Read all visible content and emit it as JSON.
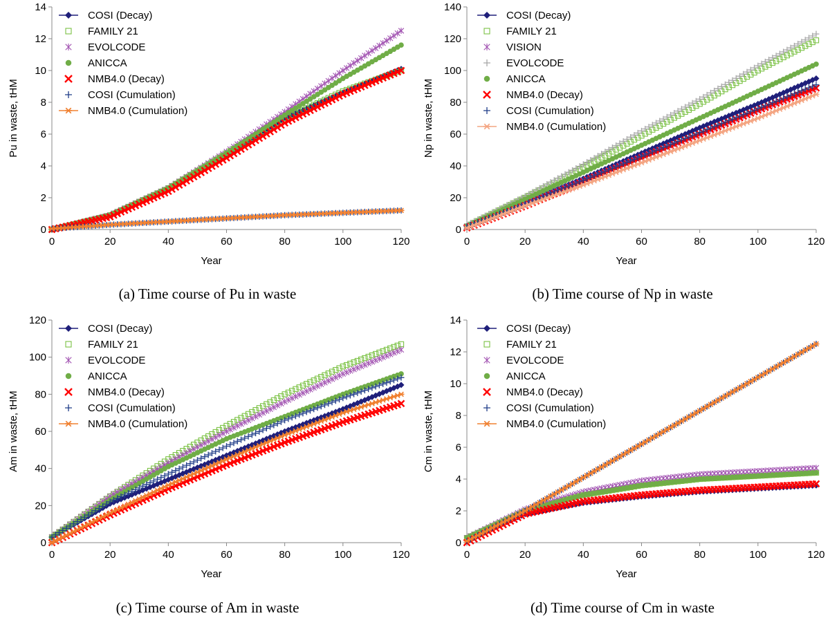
{
  "chart_data": [
    {
      "type": "line",
      "id": "pu",
      "caption": "(a) Time course of Pu in waste",
      "xlabel": "Year",
      "ylabel": "Pu in waste, tHM",
      "xlim": [
        0,
        120
      ],
      "ylim": [
        0,
        14
      ],
      "xticks": [
        "0",
        "20",
        "40",
        "60",
        "80",
        "100",
        "120"
      ],
      "yticks": [
        "0",
        "2",
        "4",
        "6",
        "8",
        "10",
        "12",
        "14"
      ],
      "series": [
        {
          "name": "COSI (Decay)",
          "color": "#1f1f7a",
          "marker": "diamond",
          "line": true,
          "x": [
            0,
            20,
            40,
            60,
            80,
            100,
            120
          ],
          "values": [
            0,
            0.9,
            2.6,
            4.7,
            7.0,
            8.6,
            10.1
          ]
        },
        {
          "name": "FAMILY 21",
          "color": "#7ac143",
          "marker": "square-open",
          "line": false,
          "x": [
            0,
            20,
            40,
            60,
            80,
            100,
            120
          ],
          "values": [
            0,
            0.9,
            2.6,
            4.8,
            7.0,
            8.7,
            10.0
          ]
        },
        {
          "name": "EVOLCODE",
          "color": "#a050b0",
          "marker": "star",
          "line": false,
          "x": [
            0,
            20,
            40,
            60,
            80,
            100,
            120
          ],
          "values": [
            0,
            0.9,
            2.6,
            4.9,
            7.4,
            10.0,
            12.5
          ]
        },
        {
          "name": "ANICCA",
          "color": "#70ad47",
          "marker": "circle",
          "line": false,
          "x": [
            0,
            20,
            40,
            60,
            80,
            100,
            120
          ],
          "values": [
            0,
            0.9,
            2.6,
            4.8,
            7.2,
            9.5,
            11.6
          ]
        },
        {
          "name": "NMB4.0 (Decay)",
          "color": "#ff0000",
          "marker": "x",
          "line": false,
          "x": [
            0,
            20,
            40,
            60,
            80,
            100,
            120
          ],
          "values": [
            0,
            0.8,
            2.4,
            4.5,
            6.7,
            8.5,
            10.0
          ]
        },
        {
          "name": "COSI (Cumulation)",
          "color": "#1f3c88",
          "marker": "plus",
          "line": false,
          "x": [
            0,
            20,
            40,
            60,
            80,
            100,
            120
          ],
          "values": [
            0.05,
            0.3,
            0.5,
            0.7,
            0.9,
            1.05,
            1.2
          ]
        },
        {
          "name": "NMB4.0 (Cumulation)",
          "color": "#f08030",
          "marker": "asterisk",
          "line": true,
          "x": [
            0,
            20,
            40,
            60,
            80,
            100,
            120
          ],
          "values": [
            0.05,
            0.3,
            0.5,
            0.7,
            0.9,
            1.05,
            1.2
          ]
        }
      ]
    },
    {
      "type": "line",
      "id": "np",
      "caption": "(b) Time course of Np in waste",
      "xlabel": "Year",
      "ylabel": "Np in waste, tHM",
      "xlim": [
        0,
        120
      ],
      "ylim": [
        0,
        140
      ],
      "xticks": [
        "0",
        "20",
        "40",
        "60",
        "80",
        "100",
        "120"
      ],
      "yticks": [
        "0",
        "20",
        "40",
        "60",
        "80",
        "100",
        "120",
        "140"
      ],
      "series": [
        {
          "name": "COSI (Decay)",
          "color": "#1f1f7a",
          "marker": "diamond",
          "line": true,
          "x": [
            0,
            20,
            40,
            60,
            80,
            100,
            120
          ],
          "values": [
            2,
            17,
            32,
            48,
            64,
            79,
            95
          ]
        },
        {
          "name": "FAMILY 21",
          "color": "#7ac143",
          "marker": "square-open",
          "line": false,
          "x": [
            0,
            20,
            40,
            60,
            80,
            100,
            120
          ],
          "values": [
            2,
            20,
            39,
            59,
            79,
            100,
            119
          ]
        },
        {
          "name": "VISION",
          "color": "#a050b0",
          "marker": "star",
          "line": false,
          "x": [
            0,
            20,
            40,
            60,
            80,
            100,
            120
          ],
          "values": [
            2,
            17,
            31,
            46,
            60,
            75,
            89
          ]
        },
        {
          "name": "EVOLCODE",
          "color": "#a6a6a6",
          "marker": "plus",
          "line": false,
          "x": [
            0,
            20,
            40,
            60,
            80,
            100,
            120
          ],
          "values": [
            3,
            21,
            41,
            62,
            82,
            103,
            123
          ]
        },
        {
          "name": "ANICCA",
          "color": "#70ad47",
          "marker": "circle",
          "line": false,
          "x": [
            0,
            20,
            40,
            60,
            80,
            100,
            120
          ],
          "values": [
            2,
            19,
            36,
            53,
            70,
            87,
            104
          ]
        },
        {
          "name": "NMB4.0 (Decay)",
          "color": "#ff0000",
          "marker": "x",
          "line": false,
          "x": [
            0,
            20,
            40,
            60,
            80,
            100,
            120
          ],
          "values": [
            1,
            15,
            30,
            45,
            60,
            75,
            89
          ]
        },
        {
          "name": "COSI (Cumulation)",
          "color": "#1f3c88",
          "marker": "plus",
          "line": false,
          "x": [
            0,
            20,
            40,
            60,
            80,
            100,
            120
          ],
          "values": [
            2,
            16,
            31,
            46,
            61,
            76,
            91
          ]
        },
        {
          "name": "NMB4.0 (Cumulation)",
          "color": "#f4a582",
          "marker": "asterisk",
          "line": true,
          "x": [
            0,
            20,
            40,
            60,
            80,
            100,
            120
          ],
          "values": [
            1,
            15,
            28,
            42,
            56,
            70,
            85
          ]
        }
      ]
    },
    {
      "type": "line",
      "id": "am",
      "caption": "(c) Time course of Am in waste",
      "xlabel": "Year",
      "ylabel": "Am in waste, tHM",
      "xlim": [
        0,
        120
      ],
      "ylim": [
        0,
        120
      ],
      "xticks": [
        "0",
        "20",
        "40",
        "60",
        "80",
        "100",
        "120"
      ],
      "yticks": [
        "0",
        "20",
        "40",
        "60",
        "80",
        "100",
        "120"
      ],
      "series": [
        {
          "name": "COSI (Decay)",
          "color": "#1f1f7a",
          "marker": "diamond",
          "line": true,
          "x": [
            0,
            20,
            40,
            60,
            80,
            100,
            120
          ],
          "values": [
            3,
            21,
            34,
            47,
            60,
            72,
            85
          ]
        },
        {
          "name": "FAMILY 21",
          "color": "#7ac143",
          "marker": "square-open",
          "line": false,
          "x": [
            0,
            20,
            40,
            60,
            80,
            100,
            120
          ],
          "values": [
            3,
            25,
            45,
            63,
            80,
            95,
            107
          ]
        },
        {
          "name": "EVOLCODE",
          "color": "#a050b0",
          "marker": "star",
          "line": false,
          "x": [
            0,
            20,
            40,
            60,
            80,
            100,
            120
          ],
          "values": [
            3,
            25,
            43,
            60,
            76,
            91,
            104
          ]
        },
        {
          "name": "ANICCA",
          "color": "#70ad47",
          "marker": "circle",
          "line": false,
          "x": [
            0,
            20,
            40,
            60,
            80,
            100,
            120
          ],
          "values": [
            3,
            23,
            41,
            56,
            68,
            80,
            91
          ]
        },
        {
          "name": "NMB4.0 (Decay)",
          "color": "#ff0000",
          "marker": "x",
          "line": false,
          "x": [
            0,
            20,
            40,
            60,
            80,
            100,
            120
          ],
          "values": [
            0,
            15,
            29,
            42,
            54,
            65,
            75
          ]
        },
        {
          "name": "COSI (Cumulation)",
          "color": "#1f3c88",
          "marker": "plus",
          "line": false,
          "x": [
            0,
            20,
            40,
            60,
            80,
            100,
            120
          ],
          "values": [
            3,
            22,
            37,
            52,
            66,
            78,
            89
          ]
        },
        {
          "name": "NMB4.0 (Cumulation)",
          "color": "#f08030",
          "marker": "asterisk",
          "line": true,
          "x": [
            0,
            20,
            40,
            60,
            80,
            100,
            120
          ],
          "values": [
            0,
            16,
            31,
            45,
            58,
            70,
            80
          ]
        }
      ]
    },
    {
      "type": "line",
      "id": "cm",
      "caption": "(d) Time course of Cm in waste",
      "xlabel": "Year",
      "ylabel": "Cm in waste, tHM",
      "xlim": [
        0,
        120
      ],
      "ylim": [
        0,
        14
      ],
      "xticks": [
        "0",
        "20",
        "40",
        "60",
        "80",
        "100",
        "120"
      ],
      "yticks": [
        "0",
        "2",
        "4",
        "6",
        "8",
        "10",
        "12",
        "14"
      ],
      "series": [
        {
          "name": "COSI (Decay)",
          "color": "#1f1f7a",
          "marker": "diamond",
          "line": true,
          "x": [
            0,
            20,
            40,
            60,
            80,
            100,
            120
          ],
          "values": [
            0.2,
            1.8,
            2.5,
            2.9,
            3.2,
            3.4,
            3.6
          ]
        },
        {
          "name": "FAMILY 21",
          "color": "#7ac143",
          "marker": "square-open",
          "line": false,
          "x": [
            0,
            20,
            40,
            60,
            80,
            100,
            120
          ],
          "values": [
            0.3,
            2.0,
            3.0,
            3.6,
            4.0,
            4.2,
            4.4
          ]
        },
        {
          "name": "EVOLCODE",
          "color": "#a050b0",
          "marker": "star",
          "line": false,
          "x": [
            0,
            20,
            40,
            60,
            80,
            100,
            120
          ],
          "values": [
            0.3,
            2.1,
            3.2,
            3.9,
            4.3,
            4.5,
            4.7
          ]
        },
        {
          "name": "ANICCA",
          "color": "#70ad47",
          "marker": "circle",
          "line": false,
          "x": [
            0,
            20,
            40,
            60,
            80,
            100,
            120
          ],
          "values": [
            0.3,
            2.0,
            3.0,
            3.6,
            4.0,
            4.2,
            4.4
          ]
        },
        {
          "name": "NMB4.0 (Decay)",
          "color": "#ff0000",
          "marker": "x",
          "line": false,
          "x": [
            0,
            20,
            40,
            60,
            80,
            100,
            120
          ],
          "values": [
            0,
            1.8,
            2.6,
            3.0,
            3.3,
            3.5,
            3.7
          ]
        },
        {
          "name": "COSI (Cumulation)",
          "color": "#1f3c88",
          "marker": "plus",
          "line": false,
          "x": [
            0,
            20,
            40,
            60,
            80,
            100,
            120
          ],
          "values": [
            0.1,
            2.0,
            4.1,
            6.2,
            8.3,
            10.4,
            12.5
          ]
        },
        {
          "name": "NMB4.0 (Cumulation)",
          "color": "#f08030",
          "marker": "asterisk",
          "line": true,
          "x": [
            0,
            20,
            40,
            60,
            80,
            100,
            120
          ],
          "values": [
            0.1,
            2.0,
            4.1,
            6.2,
            8.3,
            10.4,
            12.5
          ]
        }
      ]
    }
  ]
}
